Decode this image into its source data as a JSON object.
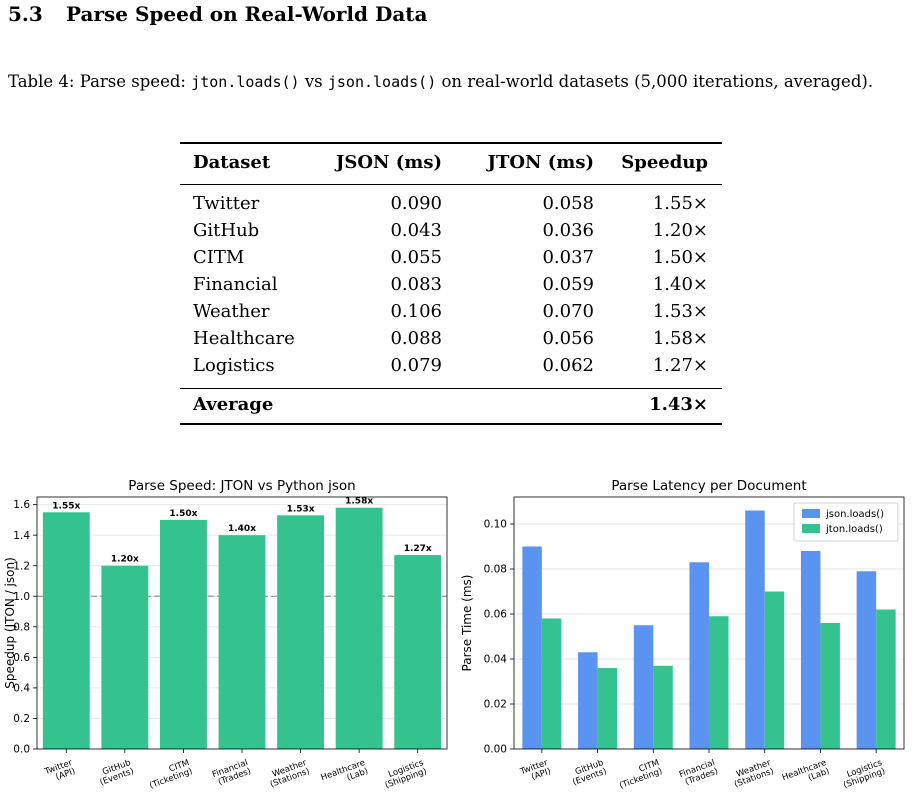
{
  "section": {
    "number": "5.3",
    "title": "Parse Speed on Real-World Data"
  },
  "caption": {
    "prefix": "Table 4: Parse speed: ",
    "code1": "jton.loads()",
    "vs": " vs ",
    "code2": "json.loads()",
    "suffix": " on real-world datasets (5,000 iterations, averaged)."
  },
  "table": {
    "headers": [
      "Dataset",
      "JSON (ms)",
      "JTON (ms)",
      "Speedup"
    ],
    "rows": [
      [
        "Twitter",
        "0.090",
        "0.058",
        "1.55×"
      ],
      [
        "GitHub",
        "0.043",
        "0.036",
        "1.20×"
      ],
      [
        "CITM",
        "0.055",
        "0.037",
        "1.50×"
      ],
      [
        "Financial",
        "0.083",
        "0.059",
        "1.40×"
      ],
      [
        "Weather",
        "0.106",
        "0.070",
        "1.53×"
      ],
      [
        "Healthcare",
        "0.088",
        "0.056",
        "1.58×"
      ],
      [
        "Logistics",
        "0.079",
        "0.062",
        "1.27×"
      ]
    ],
    "footer": [
      "Average",
      "",
      "",
      "1.43×"
    ]
  },
  "chart_data": [
    {
      "type": "bar",
      "title": "Parse Speed: JTON vs Python json",
      "ylabel": "Speedup (JTON / json)",
      "xlabel": "",
      "categories": [
        "Twitter\n(API)",
        "GitHub\n(Events)",
        "CITM\n(Ticketing)",
        "Financial\n(Trades)",
        "Weather\n(Stations)",
        "Healthcare\n(Lab)",
        "Logistics\n(Shipping)"
      ],
      "values": [
        1.55,
        1.2,
        1.5,
        1.4,
        1.53,
        1.58,
        1.27
      ],
      "data_labels": [
        "1.55x",
        "1.20x",
        "1.50x",
        "1.40x",
        "1.53x",
        "1.58x",
        "1.27x"
      ],
      "ylim": [
        0,
        1.65
      ],
      "yticks": [
        "0.0",
        "0.2",
        "0.4",
        "0.6",
        "0.8",
        "1.0",
        "1.2",
        "1.4",
        "1.6"
      ],
      "reference_line": 1.0,
      "grid": "horizontal",
      "color": "#34c38f"
    },
    {
      "type": "bar",
      "title": "Parse Latency per Document",
      "ylabel": "Parse Time (ms)",
      "xlabel": "",
      "categories": [
        "Twitter\n(API)",
        "GitHub\n(Events)",
        "CITM\n(Ticketing)",
        "Financial\n(Trades)",
        "Weather\n(Stations)",
        "Healthcare\n(Lab)",
        "Logistics\n(Shipping)"
      ],
      "series": [
        {
          "name": "json.loads()",
          "values": [
            0.09,
            0.043,
            0.055,
            0.083,
            0.106,
            0.088,
            0.079
          ],
          "color": "#5b93f0"
        },
        {
          "name": "jton.loads()",
          "values": [
            0.058,
            0.036,
            0.037,
            0.059,
            0.07,
            0.056,
            0.062
          ],
          "color": "#34c38f"
        }
      ],
      "ylim": [
        0,
        0.112
      ],
      "yticks": [
        "0.00",
        "0.02",
        "0.04",
        "0.06",
        "0.08",
        "0.10"
      ],
      "legend": "top-right",
      "grid": "horizontal"
    }
  ]
}
